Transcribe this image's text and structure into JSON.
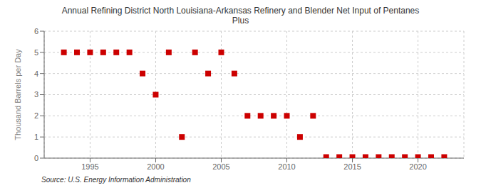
{
  "chart_data": {
    "type": "scatter",
    "title": "Annual Refining District North Louisiana-Arkansas Refinery and Blender Net Input of Pentanes\nPlus",
    "ylabel": "Thousand Barrels per Day",
    "annotations": [
      "Source: U.S. Energy Information Administration"
    ],
    "color": "#cc0000",
    "marker": "square",
    "grid": true,
    "xlim": [
      1991.5,
      2023.5
    ],
    "xticks": [
      1995,
      2000,
      2005,
      2010,
      2015,
      2020
    ],
    "ylim": [
      0,
      6
    ],
    "yticks": [
      0,
      1,
      2,
      3,
      4,
      5,
      6
    ],
    "x": [
      1993,
      1994,
      1995,
      1996,
      1997,
      1998,
      1999,
      2000,
      2001,
      2002,
      2003,
      2004,
      2005,
      2006,
      2007,
      2008,
      2009,
      2010,
      2011,
      2012,
      2013,
      2014,
      2015,
      2016,
      2017,
      2018,
      2019,
      2020,
      2021,
      2022
    ],
    "values": [
      5,
      5,
      5,
      5,
      5,
      5,
      4,
      3,
      5,
      1,
      5,
      4,
      5,
      4,
      2,
      2,
      2,
      2,
      1,
      2,
      0.05,
      0.05,
      0.05,
      0.05,
      0.05,
      0.05,
      0.05,
      0.05,
      0.05,
      0.05
    ]
  }
}
